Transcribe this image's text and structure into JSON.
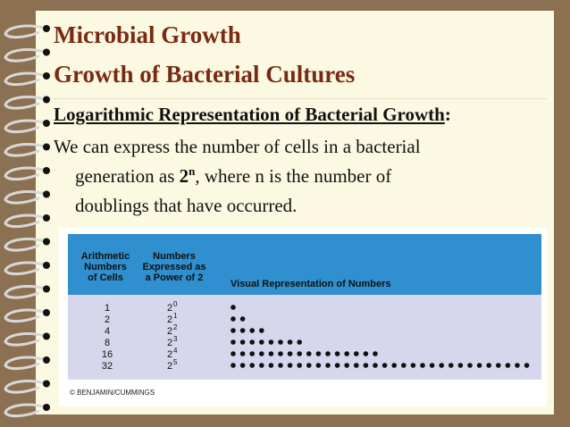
{
  "header": {
    "title": "Microbial Growth",
    "subtitle": "Growth of Bacterial Cultures"
  },
  "section": {
    "heading": "Logarithmic Representation of Bacterial Growth",
    "heading_end": ":",
    "lines": [
      "We can express the number of cells in a bacterial",
      {
        "before": "generation as ",
        "base": "2",
        "exp": "n",
        "after": ", where n is the number of"
      },
      "doublings that have occurred."
    ]
  },
  "figure": {
    "columns": [
      [
        "Arithmetic",
        "Numbers",
        "of Cells"
      ],
      [
        "Numbers",
        "Expressed as",
        "a Power of 2"
      ],
      [
        "Visual Representation of Numbers"
      ]
    ],
    "rows": [
      {
        "cells": "1",
        "base": "2",
        "exp": "0"
      },
      {
        "cells": "2",
        "base": "2",
        "exp": "1"
      },
      {
        "cells": "4",
        "base": "2",
        "exp": "2"
      },
      {
        "cells": "8",
        "base": "2",
        "exp": "3"
      },
      {
        "cells": "16",
        "base": "2",
        "exp": "4"
      },
      {
        "cells": "32",
        "base": "2",
        "exp": "5"
      }
    ],
    "credit": "© BENJAMIN/CUMMINGS"
  }
}
